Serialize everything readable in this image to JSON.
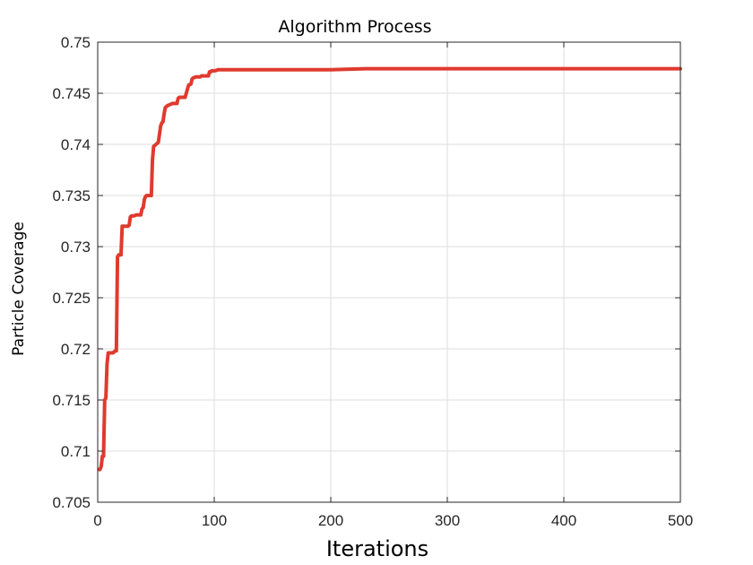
{
  "chart_data": {
    "type": "line",
    "title": "Algorithm Process",
    "xlabel": "Iterations",
    "ylabel": "Particle Coverage",
    "xlim": [
      0,
      500
    ],
    "ylim": [
      0.705,
      0.75
    ],
    "xticks": [
      0,
      100,
      200,
      300,
      400,
      500
    ],
    "yticks": [
      0.705,
      0.71,
      0.715,
      0.72,
      0.725,
      0.73,
      0.735,
      0.74,
      0.745,
      0.75
    ],
    "xtick_labels": [
      "0",
      "100",
      "200",
      "300",
      "400",
      "500"
    ],
    "ytick_labels": [
      "0.705",
      "0.71",
      "0.715",
      "0.72",
      "0.725",
      "0.73",
      "0.735",
      "0.74",
      "0.745",
      "0.75"
    ],
    "grid": true,
    "line_color": "#e03a2f",
    "series": [
      {
        "x": [
          1,
          2,
          3,
          4,
          5,
          6,
          7,
          8,
          9,
          10,
          11,
          13,
          15,
          16,
          17,
          18,
          19,
          20,
          21,
          22,
          24,
          26,
          27,
          28,
          29,
          30,
          31,
          33,
          35,
          37,
          38,
          39,
          40,
          41,
          42,
          44,
          46,
          47,
          48,
          49,
          50,
          51,
          52,
          54,
          55,
          56,
          57,
          58,
          60,
          62,
          64,
          66,
          67,
          68,
          69,
          70,
          71,
          73,
          75,
          76,
          77,
          78,
          80,
          81,
          82,
          84,
          86,
          88,
          89,
          90,
          91,
          93,
          95,
          96,
          97,
          98,
          99,
          100,
          101,
          103,
          105,
          110,
          120,
          150,
          200,
          230,
          300,
          400,
          500
        ],
        "y": [
          0.7082,
          0.7082,
          0.7085,
          0.7095,
          0.7095,
          0.715,
          0.7152,
          0.7185,
          0.7196,
          0.7196,
          0.7196,
          0.7196,
          0.7198,
          0.7198,
          0.729,
          0.7292,
          0.7292,
          0.7292,
          0.732,
          0.732,
          0.732,
          0.732,
          0.7321,
          0.7329,
          0.733,
          0.733,
          0.733,
          0.7331,
          0.7331,
          0.7331,
          0.7337,
          0.7338,
          0.7346,
          0.7349,
          0.735,
          0.735,
          0.735,
          0.7385,
          0.7398,
          0.7399,
          0.74,
          0.7401,
          0.7402,
          0.7418,
          0.7421,
          0.7422,
          0.743,
          0.7436,
          0.7438,
          0.7439,
          0.744,
          0.744,
          0.744,
          0.744,
          0.7445,
          0.7446,
          0.7446,
          0.7446,
          0.7446,
          0.745,
          0.7454,
          0.7458,
          0.7459,
          0.7464,
          0.7465,
          0.7466,
          0.7466,
          0.7466,
          0.7467,
          0.7467,
          0.7467,
          0.7467,
          0.7467,
          0.7471,
          0.7471,
          0.7472,
          0.7472,
          0.7472,
          0.7472,
          0.7473,
          0.7473,
          0.7473,
          0.7473,
          0.7473,
          0.7473,
          0.7474,
          0.7474,
          0.7474,
          0.7474
        ]
      }
    ]
  }
}
